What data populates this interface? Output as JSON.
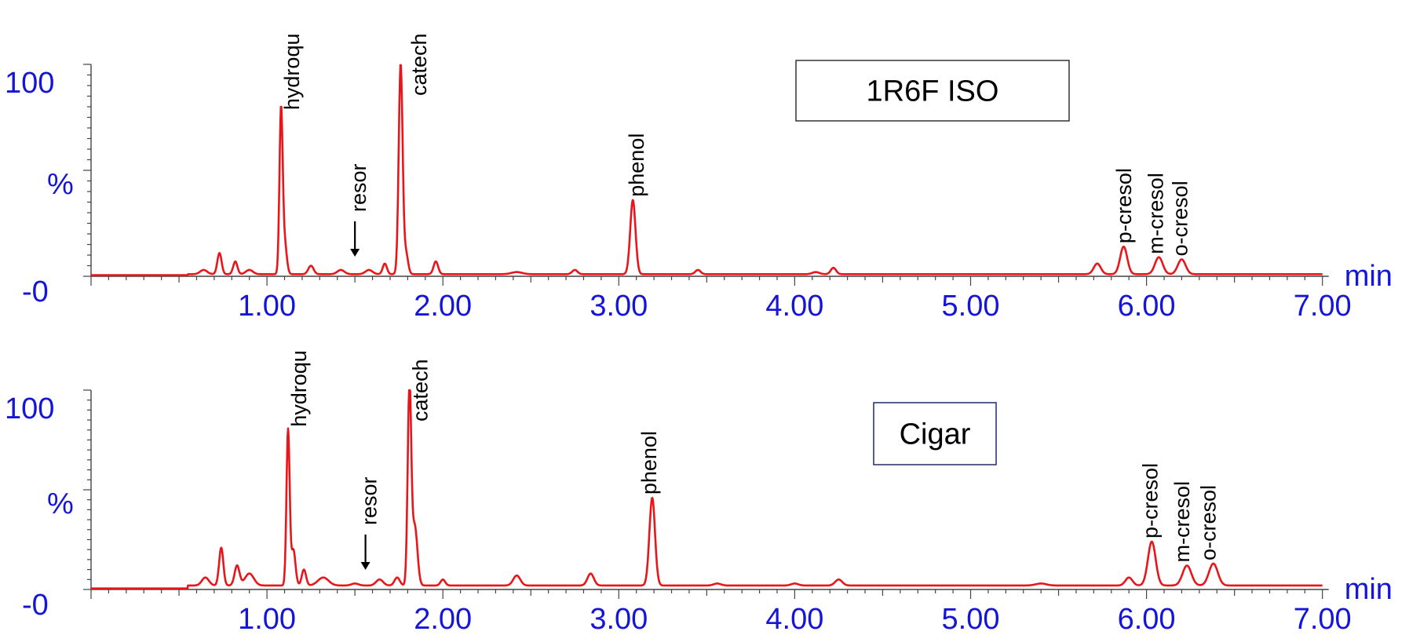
{
  "colors": {
    "trace": "#e8161b",
    "axis_text": "#1515d9",
    "labels": "#000000",
    "sample_box_border_2": "#1f2a6b"
  },
  "chart_data": [
    {
      "type": "line",
      "sample_label": "1R6F ISO",
      "ylabel": "%",
      "xunit": "min",
      "ytick_labels": [
        "100",
        "%",
        "-0"
      ],
      "xtick_labels": [
        "1.00",
        "2.00",
        "3.00",
        "4.00",
        "5.00",
        "6.00",
        "7.00"
      ],
      "xlim": [
        0,
        7
      ],
      "ylim": [
        0,
        100
      ],
      "peak_labels": [
        {
          "text": "hydroqu",
          "x": 1.12
        },
        {
          "text": "resor",
          "x": 1.5,
          "arrow": true
        },
        {
          "text": "catech",
          "x": 1.79
        },
        {
          "text": "phenol",
          "x": 3.08
        },
        {
          "text": "p-cresol",
          "x": 5.85
        },
        {
          "text": "m-cresol",
          "x": 6.03
        },
        {
          "text": "o-cresol",
          "x": 6.17
        }
      ],
      "baseline": 1,
      "peaks": [
        {
          "x": 0.64,
          "h": 2,
          "w": 0.02
        },
        {
          "x": 0.73,
          "h": 10,
          "w": 0.012
        },
        {
          "x": 0.82,
          "h": 6,
          "w": 0.012
        },
        {
          "x": 0.9,
          "h": 2,
          "w": 0.02
        },
        {
          "x": 1.08,
          "h": 76,
          "w": 0.009
        },
        {
          "x": 1.1,
          "h": 15,
          "w": 0.012
        },
        {
          "x": 1.25,
          "h": 4,
          "w": 0.015
        },
        {
          "x": 1.42,
          "h": 2,
          "w": 0.02
        },
        {
          "x": 1.58,
          "h": 2,
          "w": 0.02
        },
        {
          "x": 1.67,
          "h": 5,
          "w": 0.012
        },
        {
          "x": 1.76,
          "h": 99,
          "w": 0.011
        },
        {
          "x": 1.79,
          "h": 10,
          "w": 0.012
        },
        {
          "x": 1.96,
          "h": 6,
          "w": 0.013
        },
        {
          "x": 2.42,
          "h": 1,
          "w": 0.03
        },
        {
          "x": 2.75,
          "h": 2,
          "w": 0.015
        },
        {
          "x": 3.08,
          "h": 35,
          "w": 0.015
        },
        {
          "x": 3.45,
          "h": 2,
          "w": 0.015
        },
        {
          "x": 4.22,
          "h": 3,
          "w": 0.015
        },
        {
          "x": 4.12,
          "h": 1,
          "w": 0.02
        },
        {
          "x": 5.72,
          "h": 5,
          "w": 0.02
        },
        {
          "x": 5.87,
          "h": 13,
          "w": 0.02
        },
        {
          "x": 6.07,
          "h": 8,
          "w": 0.022
        },
        {
          "x": 6.2,
          "h": 7,
          "w": 0.022
        }
      ]
    },
    {
      "type": "line",
      "sample_label": "Cigar",
      "ylabel": "%",
      "xunit": "min",
      "ytick_labels": [
        "100",
        "%",
        "-0"
      ],
      "xtick_labels": [
        "1.00",
        "2.00",
        "3.00",
        "4.00",
        "5.00",
        "6.00",
        "7.00"
      ],
      "xlim": [
        0,
        7
      ],
      "ylim": [
        0,
        100
      ],
      "peak_labels": [
        {
          "text": "hydroqu",
          "x": 1.16
        },
        {
          "text": "resor",
          "x": 1.56,
          "arrow": true
        },
        {
          "text": "catech",
          "x": 1.85
        },
        {
          "text": "phenol",
          "x": 3.15
        },
        {
          "text": "p-cresol",
          "x": 6.0
        },
        {
          "text": "m-cresol",
          "x": 6.18
        },
        {
          "text": "o-cresol",
          "x": 6.33
        }
      ],
      "baseline": 2,
      "peaks": [
        {
          "x": 0.65,
          "h": 4,
          "w": 0.02
        },
        {
          "x": 0.74,
          "h": 19,
          "w": 0.012
        },
        {
          "x": 0.83,
          "h": 10,
          "w": 0.014
        },
        {
          "x": 0.9,
          "h": 6,
          "w": 0.025
        },
        {
          "x": 1.12,
          "h": 78,
          "w": 0.009
        },
        {
          "x": 1.15,
          "h": 18,
          "w": 0.012
        },
        {
          "x": 1.21,
          "h": 8,
          "w": 0.012
        },
        {
          "x": 1.32,
          "h": 4,
          "w": 0.03
        },
        {
          "x": 1.5,
          "h": 1,
          "w": 0.02
        },
        {
          "x": 1.64,
          "h": 3,
          "w": 0.02
        },
        {
          "x": 1.74,
          "h": 4,
          "w": 0.015
        },
        {
          "x": 1.81,
          "h": 99,
          "w": 0.01
        },
        {
          "x": 1.84,
          "h": 30,
          "w": 0.015
        },
        {
          "x": 2.0,
          "h": 3,
          "w": 0.013
        },
        {
          "x": 2.42,
          "h": 5,
          "w": 0.02
        },
        {
          "x": 2.84,
          "h": 6,
          "w": 0.018
        },
        {
          "x": 3.19,
          "h": 44,
          "w": 0.016
        },
        {
          "x": 3.56,
          "h": 1,
          "w": 0.02
        },
        {
          "x": 4.25,
          "h": 3,
          "w": 0.02
        },
        {
          "x": 4.0,
          "h": 1,
          "w": 0.02
        },
        {
          "x": 5.4,
          "h": 1,
          "w": 0.03
        },
        {
          "x": 5.9,
          "h": 4,
          "w": 0.02
        },
        {
          "x": 6.03,
          "h": 22,
          "w": 0.022
        },
        {
          "x": 6.23,
          "h": 10,
          "w": 0.025
        },
        {
          "x": 6.38,
          "h": 11,
          "w": 0.025
        }
      ]
    }
  ]
}
